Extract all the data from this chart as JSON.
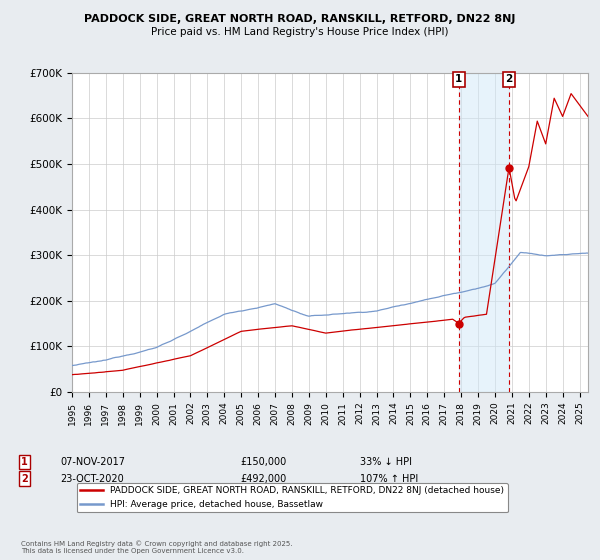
{
  "title1": "PADDOCK SIDE, GREAT NORTH ROAD, RANSKILL, RETFORD, DN22 8NJ",
  "title2": "Price paid vs. HM Land Registry's House Price Index (HPI)",
  "xlim_start": 1995.0,
  "xlim_end": 2025.5,
  "ylim": [
    0,
    700000
  ],
  "yticks": [
    0,
    100000,
    200000,
    300000,
    400000,
    500000,
    600000,
    700000
  ],
  "ytick_labels": [
    "£0",
    "£100K",
    "£200K",
    "£300K",
    "£400K",
    "£500K",
    "£600K",
    "£700K"
  ],
  "sale1_date": 2017.86,
  "sale1_price": 150000,
  "sale2_date": 2020.83,
  "sale2_price": 492000,
  "hpi_color": "#7799cc",
  "property_color": "#cc0000",
  "legend_property": "PADDOCK SIDE, GREAT NORTH ROAD, RANSKILL, RETFORD, DN22 8NJ (detached house)",
  "legend_hpi": "HPI: Average price, detached house, Bassetlaw",
  "annotation1_date": "07-NOV-2017",
  "annotation1_price": "£150,000",
  "annotation1_hpi": "33% ↓ HPI",
  "annotation2_date": "23-OCT-2020",
  "annotation2_price": "£492,000",
  "annotation2_hpi": "107% ↑ HPI",
  "footer": "Contains HM Land Registry data © Crown copyright and database right 2025.\nThis data is licensed under the Open Government Licence v3.0.",
  "background_color": "#e8ecf0",
  "plot_bg_color": "#ffffff",
  "span_color": "#d0e8f8",
  "span_alpha": 0.5
}
